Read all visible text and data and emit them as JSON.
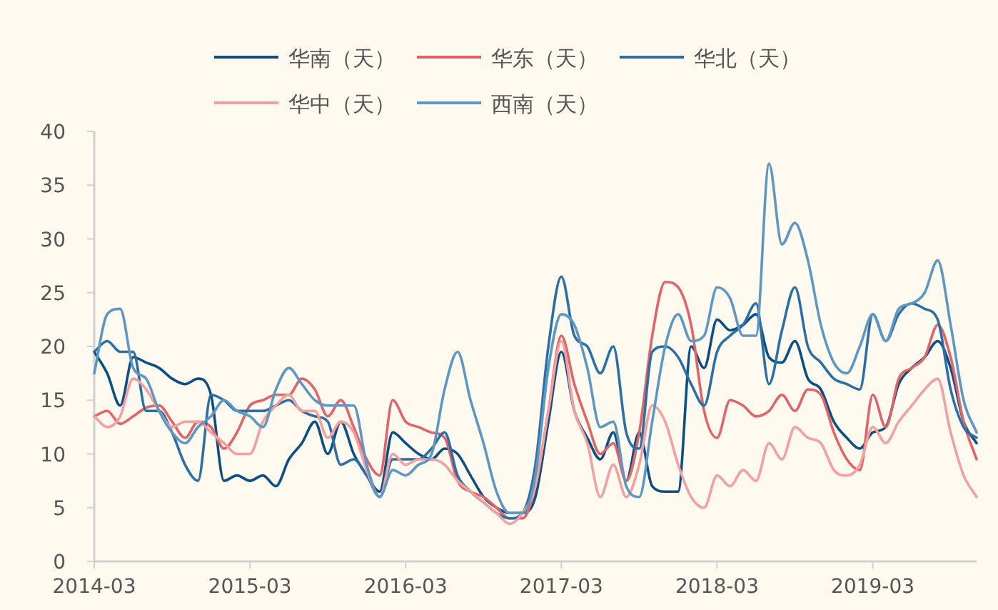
{
  "chart_data": {
    "type": "line",
    "x": [
      "2014-03",
      "2014-04",
      "2014-05",
      "2014-06",
      "2014-07",
      "2014-08",
      "2014-09",
      "2014-10",
      "2014-11",
      "2014-12",
      "2015-01",
      "2015-02",
      "2015-03",
      "2015-04",
      "2015-05",
      "2015-06",
      "2015-07",
      "2015-08",
      "2015-09",
      "2015-10",
      "2015-11",
      "2015-12",
      "2016-01",
      "2016-02",
      "2016-03",
      "2016-04",
      "2016-05",
      "2016-06",
      "2016-07",
      "2016-08",
      "2016-09",
      "2016-10",
      "2016-11",
      "2016-12",
      "2017-01",
      "2017-02",
      "2017-03",
      "2017-04",
      "2017-05",
      "2017-06",
      "2017-07",
      "2017-08",
      "2017-09",
      "2017-10",
      "2017-11",
      "2017-12",
      "2018-01",
      "2018-02",
      "2018-03",
      "2018-04",
      "2018-05",
      "2018-06",
      "2018-07",
      "2018-08",
      "2018-09",
      "2018-10",
      "2018-11",
      "2018-12",
      "2019-01",
      "2019-02",
      "2019-03",
      "2019-04",
      "2019-05",
      "2019-06",
      "2019-07",
      "2019-08",
      "2019-09",
      "2019-10",
      "2019-11"
    ],
    "series": [
      {
        "name": "华南（天）",
        "color": "#0d4f82",
        "values": [
          19.5,
          17.5,
          14.5,
          19,
          18.5,
          18,
          17,
          16.5,
          17,
          15.5,
          7.5,
          8,
          7.5,
          8,
          7,
          9.5,
          11,
          13,
          10,
          13,
          10,
          8,
          6.5,
          12,
          11,
          10,
          9.5,
          10.5,
          10,
          8,
          6,
          5,
          4.5,
          4.5,
          6,
          13,
          19.5,
          14,
          11.5,
          9.5,
          12,
          7.5,
          12,
          7,
          6.5,
          6.5,
          20,
          18,
          22.5,
          21.5,
          22,
          23,
          19,
          18.5,
          20.5,
          17,
          16,
          13,
          11.5,
          10.5,
          12,
          12.5,
          16.5,
          18,
          19,
          20.5,
          18,
          13,
          11
        ]
      },
      {
        "name": "华东（天）",
        "color": "#e06468",
        "values": [
          13.5,
          14,
          12.8,
          13.5,
          14.3,
          14.5,
          13,
          11.5,
          13,
          12.5,
          10.5,
          12,
          14.5,
          15,
          15.5,
          15.5,
          17,
          16,
          13.5,
          15,
          12.5,
          9.5,
          8,
          15,
          13,
          12.5,
          12,
          11.5,
          7.5,
          6.5,
          6,
          5,
          4,
          4,
          7,
          14,
          21,
          16.5,
          13,
          10,
          11,
          7.5,
          12,
          21,
          26,
          25.5,
          22,
          14,
          11.5,
          15,
          14.5,
          13.5,
          14,
          15.5,
          14,
          16,
          15.5,
          12,
          9.5,
          8.5,
          15.5,
          12.5,
          17,
          18,
          19,
          22,
          19,
          13,
          9.5
        ]
      },
      {
        "name": "华北（天）",
        "color": "#2c6fa5",
        "values": [
          19.5,
          20.5,
          19.5,
          19.5,
          14,
          14,
          12,
          9,
          7.5,
          15.5,
          15,
          14,
          14,
          14,
          14.5,
          15,
          14,
          13.5,
          13,
          9,
          9.5,
          8,
          6,
          9.5,
          9.5,
          9.5,
          10.5,
          12,
          8,
          6.5,
          5.5,
          4.5,
          4,
          4.5,
          9,
          20,
          26.5,
          21,
          20,
          17.5,
          20,
          12,
          10.5,
          19.5,
          20,
          19,
          16.5,
          14.5,
          19.5,
          21,
          22,
          24,
          16.5,
          21.5,
          25.5,
          20,
          18.5,
          17,
          16.5,
          16,
          23,
          20.5,
          23,
          24,
          23.5,
          22.5,
          16,
          12.5,
          11.5
        ]
      },
      {
        "name": "华中（天）",
        "color": "#f2a0a0",
        "values": [
          13.5,
          12.5,
          13.5,
          17,
          16,
          14,
          12.5,
          13,
          13,
          12,
          11,
          10,
          10,
          13,
          14.5,
          15.5,
          14,
          14,
          11.5,
          13,
          12,
          8.5,
          6,
          10,
          9,
          9.5,
          9.5,
          9,
          7.5,
          6.5,
          5.5,
          4.5,
          3.5,
          4.5,
          7,
          14,
          20.5,
          14,
          11,
          6,
          9,
          6,
          9,
          14.5,
          13,
          9,
          6,
          5,
          8,
          7,
          8.5,
          7.5,
          11,
          9.5,
          12.5,
          11.5,
          11,
          8.5,
          8,
          9,
          12.5,
          11,
          13,
          14.5,
          16,
          17,
          12,
          8,
          6
        ]
      },
      {
        "name": "西南（天）",
        "color": "#5e98c2",
        "values": [
          17.5,
          23,
          23.5,
          18,
          17,
          14,
          12,
          11,
          12.5,
          13.5,
          15,
          14,
          13.5,
          12.5,
          16,
          18,
          16.5,
          15,
          14.5,
          14.5,
          14.5,
          9,
          6,
          8.5,
          8,
          9,
          10,
          16,
          19.5,
          15,
          11,
          6.5,
          4.5,
          4.5,
          8,
          18,
          23,
          22,
          18,
          12.5,
          13,
          7,
          6,
          13,
          20,
          23,
          20.5,
          21,
          25.5,
          24.5,
          21,
          21,
          37,
          29.5,
          31.5,
          28,
          22,
          18.5,
          17.5,
          20,
          23,
          20.5,
          23.5,
          24,
          25,
          28,
          22,
          15,
          12
        ]
      }
    ],
    "xlim": [
      "2014-03",
      "2019-11"
    ],
    "xticks": [
      "2014-03",
      "2015-03",
      "2016-03",
      "2017-03",
      "2018-03",
      "2019-03"
    ],
    "ylim": [
      0,
      40
    ],
    "yticks": [
      0,
      5,
      10,
      15,
      20,
      25,
      30,
      35,
      40
    ],
    "legend": "top",
    "marker": "none",
    "line_style": "solid"
  }
}
